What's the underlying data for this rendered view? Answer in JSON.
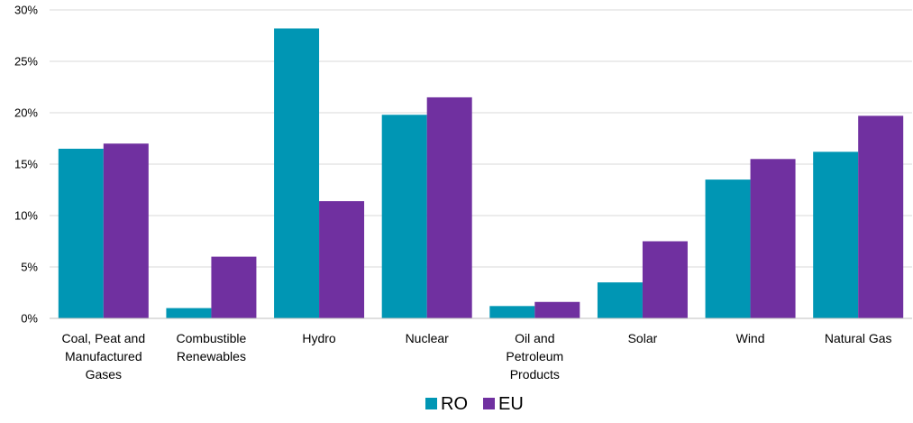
{
  "chart_data": {
    "type": "bar",
    "categories": [
      [
        "Coal, Peat and",
        "Manufactured",
        "Gases"
      ],
      [
        "Combustible",
        "Renewables"
      ],
      [
        "Hydro"
      ],
      [
        "Nuclear"
      ],
      [
        "Oil and",
        "Petroleum",
        "Products"
      ],
      [
        "Solar"
      ],
      [
        "Wind"
      ],
      [
        "Natural Gas"
      ]
    ],
    "series": [
      {
        "name": "RO",
        "color": "#0096B4",
        "values": [
          16.5,
          1.0,
          28.2,
          19.8,
          1.2,
          3.5,
          13.5,
          16.2
        ]
      },
      {
        "name": "EU",
        "color": "#7030A0",
        "values": [
          17.0,
          6.0,
          11.4,
          21.5,
          1.6,
          7.5,
          15.5,
          19.7
        ]
      }
    ],
    "ylim": [
      0,
      30
    ],
    "yticks": [
      0,
      5,
      10,
      15,
      20,
      25,
      30
    ],
    "ytick_labels": [
      "0%",
      "5%",
      "10%",
      "15%",
      "20%",
      "25%",
      "30%"
    ],
    "grid": true,
    "legend_position": "bottom-center",
    "title": "",
    "xlabel": "",
    "ylabel": ""
  }
}
